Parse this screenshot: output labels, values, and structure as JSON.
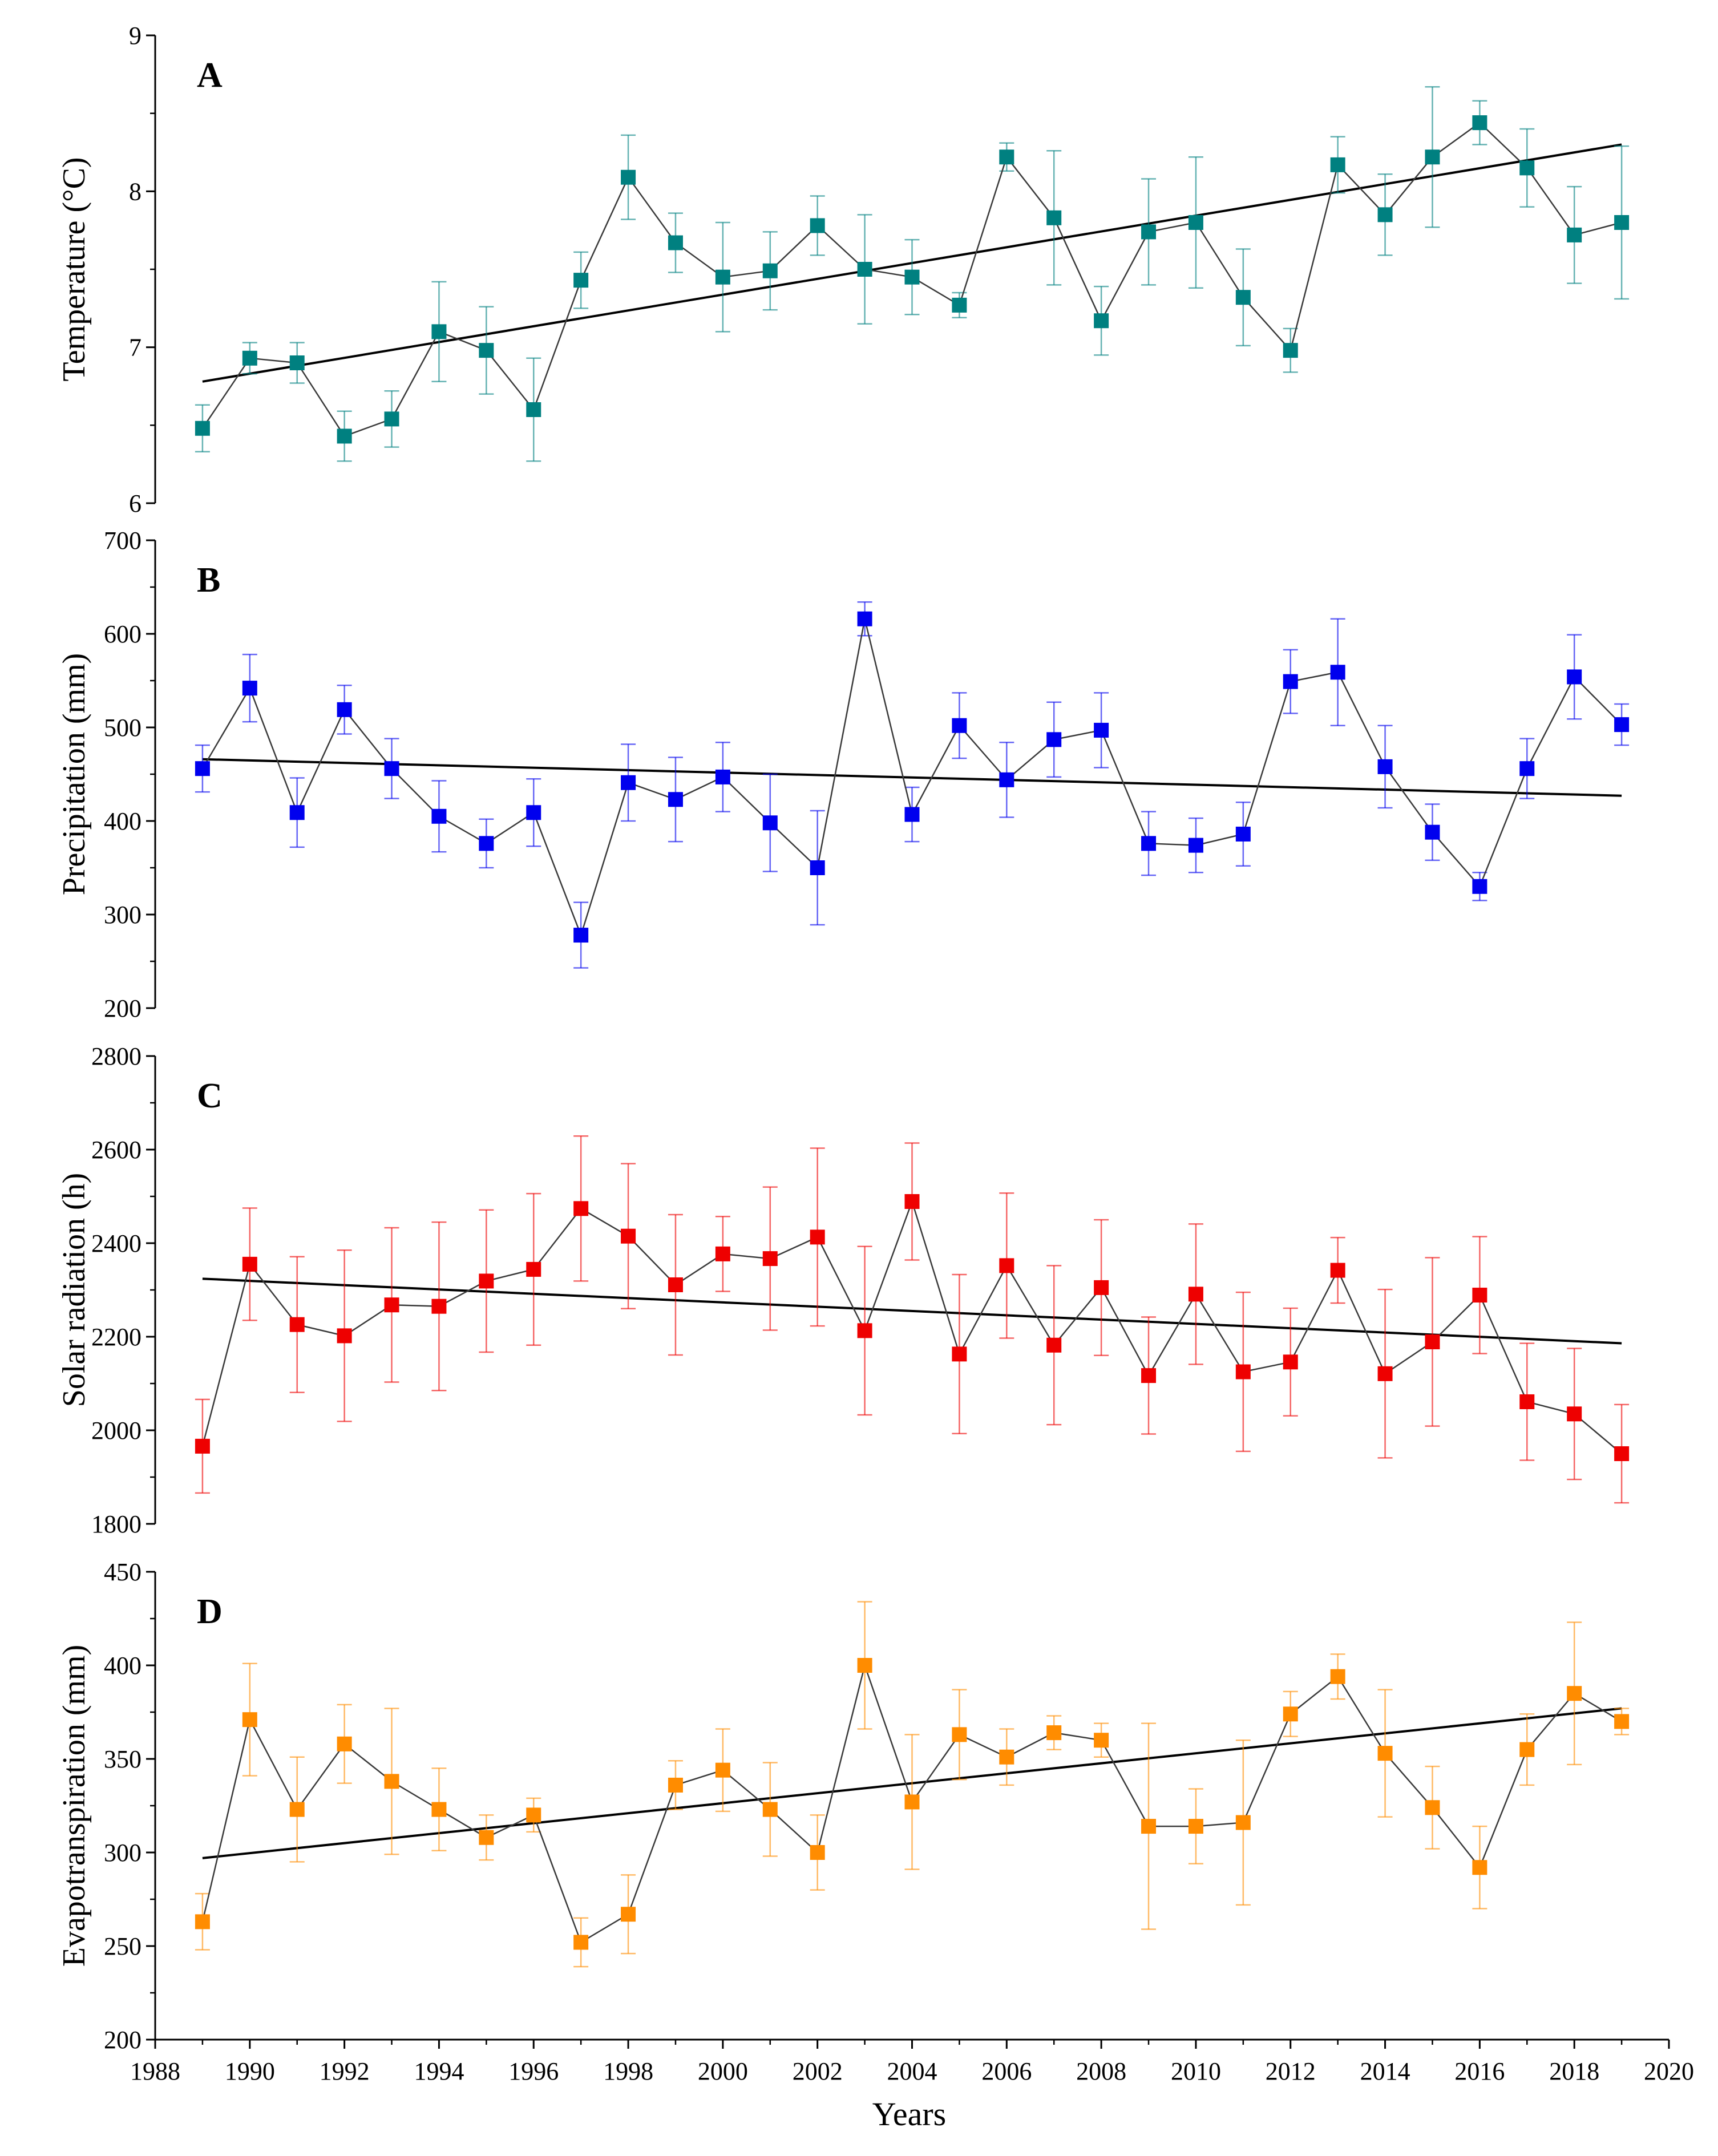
{
  "chart_data": [
    {
      "type": "line",
      "panel": "A",
      "ylabel": "Temperature (°C)",
      "ylim": [
        6,
        9
      ],
      "yticks": [
        "6",
        "7",
        "8",
        "9"
      ],
      "color": "#008080",
      "x": [
        1989,
        1990,
        1991,
        1992,
        1993,
        1994,
        1995,
        1996,
        1997,
        1998,
        1999,
        2000,
        2001,
        2002,
        2003,
        2004,
        2005,
        2006,
        2007,
        2008,
        2009,
        2010,
        2011,
        2012,
        2013,
        2014,
        2015,
        2016,
        2017,
        2018,
        2019
      ],
      "values": [
        6.48,
        6.93,
        6.9,
        6.43,
        6.54,
        7.1,
        6.98,
        6.6,
        7.43,
        8.09,
        7.67,
        7.45,
        7.49,
        7.78,
        7.5,
        7.45,
        7.27,
        8.22,
        7.83,
        7.17,
        7.74,
        7.8,
        7.32,
        6.98,
        8.17,
        7.85,
        8.22,
        8.44,
        8.15,
        7.72,
        7.8
      ],
      "errors": [
        0.15,
        0.1,
        0.13,
        0.16,
        0.18,
        0.32,
        0.28,
        0.33,
        0.18,
        0.27,
        0.19,
        0.35,
        0.25,
        0.19,
        0.35,
        0.24,
        0.08,
        0.09,
        0.43,
        0.22,
        0.34,
        0.42,
        0.31,
        0.14,
        0.18,
        0.26,
        0.45,
        0.14,
        0.25,
        0.31,
        0.49
      ],
      "trend": [
        6.78,
        8.3
      ]
    },
    {
      "type": "line",
      "panel": "B",
      "ylabel": "Precipitation (mm)",
      "ylim": [
        200,
        700
      ],
      "yticks": [
        "200",
        "300",
        "400",
        "500",
        "600",
        "700"
      ],
      "color": "#0000ee",
      "x": [
        1989,
        1990,
        1991,
        1992,
        1993,
        1994,
        1995,
        1996,
        1997,
        1998,
        1999,
        2000,
        2001,
        2002,
        2003,
        2004,
        2005,
        2006,
        2007,
        2008,
        2009,
        2010,
        2011,
        2012,
        2013,
        2014,
        2015,
        2016,
        2017,
        2018,
        2019
      ],
      "values": [
        456,
        542,
        409,
        519,
        456,
        405,
        376,
        409,
        278,
        441,
        423,
        447,
        398,
        350,
        616,
        407,
        502,
        444,
        487,
        497,
        376,
        374,
        386,
        549,
        559,
        458,
        388,
        330,
        456,
        554,
        503
      ],
      "errors": [
        25,
        36,
        37,
        26,
        32,
        38,
        26,
        36,
        35,
        41,
        45,
        37,
        52,
        61,
        18,
        29,
        35,
        40,
        40,
        40,
        34,
        29,
        34,
        34,
        57,
        44,
        30,
        15,
        32,
        45,
        22
      ],
      "trend": [
        466,
        427
      ]
    },
    {
      "type": "line",
      "panel": "C",
      "ylabel": "Solar radiation (h)",
      "ylim": [
        1800,
        2800
      ],
      "yticks": [
        "1800",
        "2000",
        "2200",
        "2400",
        "2600",
        "2800"
      ],
      "color": "#ee0000",
      "x": [
        1989,
        1990,
        1991,
        1992,
        1993,
        1994,
        1995,
        1996,
        1997,
        1998,
        1999,
        2000,
        2001,
        2002,
        2003,
        2004,
        2005,
        2006,
        2007,
        2008,
        2009,
        2010,
        2011,
        2012,
        2013,
        2014,
        2015,
        2016,
        2017,
        2018,
        2019
      ],
      "values": [
        1966,
        2355,
        2226,
        2202,
        2268,
        2265,
        2319,
        2344,
        2474,
        2415,
        2311,
        2377,
        2367,
        2413,
        2213,
        2489,
        2163,
        2352,
        2182,
        2305,
        2117,
        2291,
        2125,
        2146,
        2342,
        2121,
        2189,
        2289,
        2061,
        2035,
        1950
      ],
      "errors": [
        100,
        120,
        145,
        183,
        165,
        180,
        152,
        162,
        155,
        155,
        150,
        80,
        153,
        190,
        180,
        125,
        170,
        155,
        170,
        145,
        125,
        150,
        170,
        115,
        70,
        180,
        180,
        125,
        125,
        140,
        105
      ],
      "trend": [
        2324,
        2186
      ]
    },
    {
      "type": "line",
      "panel": "D",
      "ylabel": "Evapotranspiration (mm)",
      "ylim": [
        200,
        450
      ],
      "yticks": [
        "200",
        "250",
        "300",
        "350",
        "400",
        "450"
      ],
      "color": "#ff8c00",
      "x": [
        1989,
        1990,
        1991,
        1992,
        1993,
        1994,
        1995,
        1996,
        1997,
        1998,
        1999,
        2000,
        2001,
        2002,
        2003,
        2004,
        2005,
        2006,
        2007,
        2008,
        2009,
        2010,
        2011,
        2012,
        2013,
        2014,
        2015,
        2016,
        2017,
        2018,
        2019
      ],
      "values": [
        263,
        371,
        323,
        358,
        338,
        323,
        308,
        320,
        252,
        267,
        336,
        344,
        323,
        300,
        400,
        327,
        363,
        351,
        364,
        360,
        314,
        314,
        316,
        374,
        394,
        353,
        324,
        292,
        355,
        385,
        370
      ],
      "errors": [
        15,
        30,
        28,
        21,
        39,
        22,
        12,
        9,
        13,
        21,
        13,
        22,
        25,
        20,
        34,
        36,
        24,
        15,
        9,
        9,
        55,
        20,
        44,
        12,
        12,
        34,
        22,
        22,
        19,
        38,
        7
      ],
      "trend": [
        297,
        377
      ]
    }
  ],
  "x_axis": {
    "title": "Years",
    "ticks": [
      "1988",
      "1990",
      "1992",
      "1994",
      "1996",
      "1998",
      "2000",
      "2002",
      "2004",
      "2006",
      "2008",
      "2010",
      "2012",
      "2014",
      "2016",
      "2018",
      "2020"
    ],
    "xlim": [
      1988,
      2020
    ]
  }
}
